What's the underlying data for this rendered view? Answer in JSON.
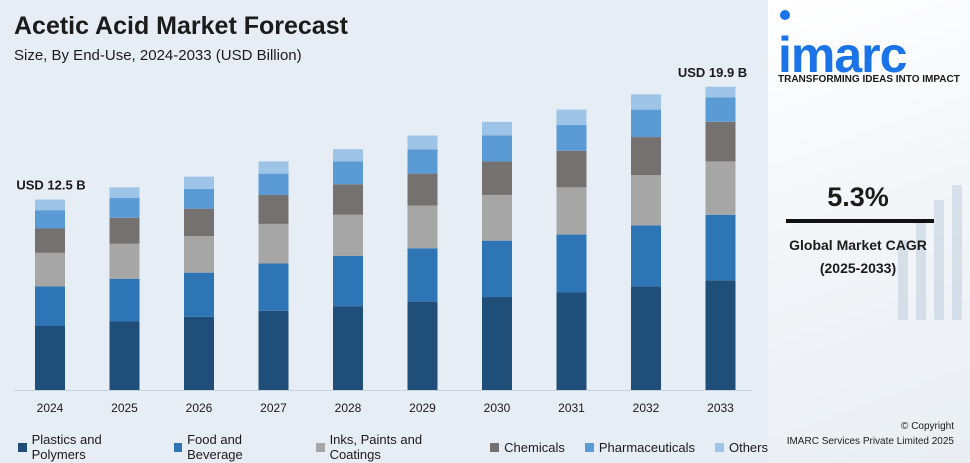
{
  "header": {
    "title": "Acetic Acid Market Forecast",
    "subtitle": "Size, By End-Use, 2024-2033 (USD Billion)"
  },
  "annotations": {
    "start_label": "USD 12.5 B",
    "end_label": "USD 19.9 B"
  },
  "colors": {
    "panel_bg": "#e6edf5",
    "brand_blue": "#1a74e8"
  },
  "chart_data": {
    "type": "bar",
    "stacked": true,
    "title": "Acetic Acid Market Forecast",
    "subtitle": "Size, By End-Use, 2024-2033 (USD Billion)",
    "categories": [
      "2024",
      "2025",
      "2026",
      "2027",
      "2028",
      "2029",
      "2030",
      "2031",
      "2032",
      "2033"
    ],
    "series": [
      {
        "name": "Plastics and Polymers",
        "color": "#1f4e79",
        "values": [
          4.2,
          4.5,
          4.8,
          5.2,
          5.5,
          5.8,
          6.1,
          6.4,
          6.8,
          7.2
        ]
      },
      {
        "name": "Food and Beverage",
        "color": "#2e75b6",
        "values": [
          2.6,
          2.8,
          2.9,
          3.1,
          3.3,
          3.5,
          3.7,
          3.8,
          4.0,
          4.3
        ]
      },
      {
        "name": "Inks, Paints and Coatings",
        "color": "#a6a6a6",
        "values": [
          2.2,
          2.3,
          2.4,
          2.6,
          2.7,
          2.8,
          3.0,
          3.1,
          3.3,
          3.5
        ]
      },
      {
        "name": "Chemicals",
        "color": "#767171",
        "values": [
          1.6,
          1.7,
          1.8,
          1.9,
          2.0,
          2.1,
          2.2,
          2.4,
          2.5,
          2.6
        ]
      },
      {
        "name": "Pharmaceuticals",
        "color": "#5b9bd5",
        "values": [
          1.2,
          1.3,
          1.3,
          1.4,
          1.5,
          1.6,
          1.7,
          1.7,
          1.8,
          1.6
        ]
      },
      {
        "name": "Others",
        "color": "#9dc3e6",
        "values": [
          0.7,
          0.7,
          0.8,
          0.8,
          0.8,
          0.9,
          0.9,
          1.0,
          1.0,
          0.7
        ]
      }
    ],
    "ylim": [
      0,
      21
    ],
    "grid": false,
    "legend": "bottom"
  },
  "side": {
    "logo": "imarc",
    "tagline": "TRANSFORMING IDEAS INTO IMPACT",
    "cagr_value": "5.3%",
    "cagr_label_line1": "Global Market CAGR",
    "cagr_label_line2": "(2025-2033)",
    "copyright_line1": "© Copyright",
    "copyright_line2": "IMARC Services Private Limited 2025"
  }
}
